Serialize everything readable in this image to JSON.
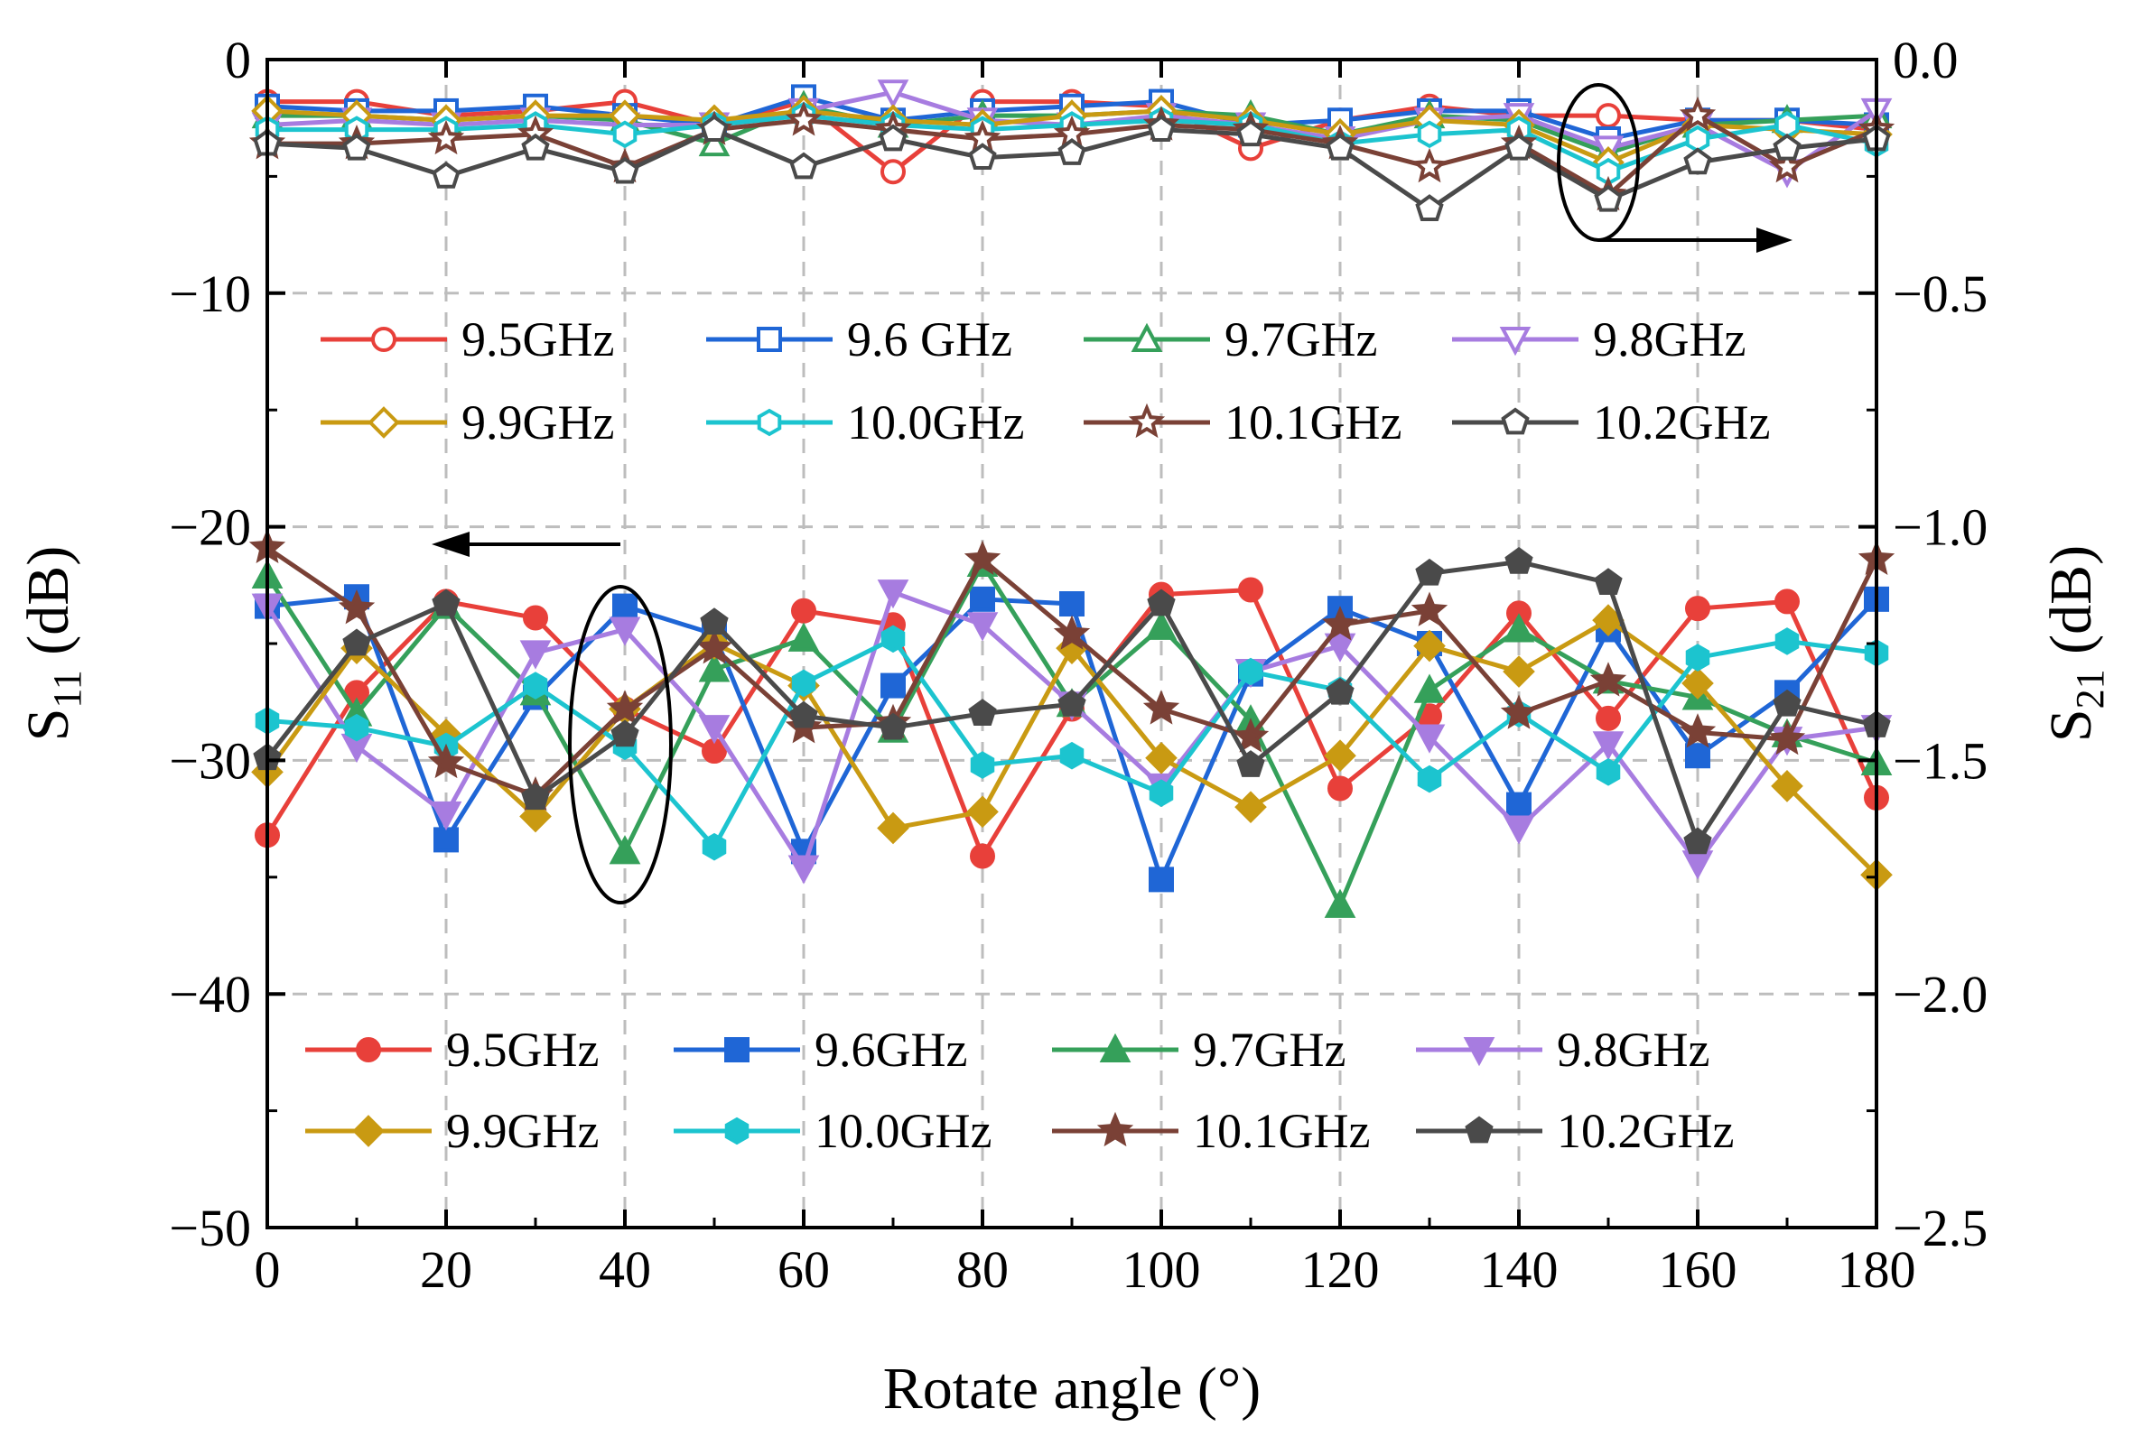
{
  "chart_data": {
    "type": "line",
    "xlabel": "Rotate angle (°)",
    "ylabel_left": {
      "base": "S",
      "sub": "11",
      "unit": " (dB)"
    },
    "ylabel_right": {
      "base": "S",
      "sub": "21",
      "unit": " (dB)"
    },
    "x": [
      0,
      10,
      20,
      30,
      40,
      50,
      60,
      70,
      80,
      90,
      100,
      110,
      120,
      130,
      140,
      150,
      160,
      170,
      180
    ],
    "xlim": [
      0,
      180
    ],
    "ylim_left": [
      -50,
      0
    ],
    "ylim_right": [
      -2.5,
      0.0
    ],
    "x_ticks": [
      "0",
      "20",
      "40",
      "60",
      "80",
      "100",
      "120",
      "140",
      "160",
      "180"
    ],
    "y_ticks_left": [
      "0",
      "−10",
      "−20",
      "−30",
      "−40",
      "−50"
    ],
    "y_ticks_right": [
      "0.0",
      "−0.5",
      "−1.0",
      "−1.5",
      "−2.0",
      "−2.5"
    ],
    "grid": true,
    "colors": {
      "9.5": "#e8403a",
      "9.6": "#1f66d6",
      "9.7": "#35a05a",
      "9.8": "#a77ce0",
      "9.9": "#c99a12",
      "10.0": "#1cc4cf",
      "10.1": "#7a4136",
      "10.2": "#4a4a4a"
    },
    "legend_s21": {
      "placement": "upper-middle",
      "entries": [
        "9.5GHz",
        "9.6 GHz",
        "9.7GHz",
        "9.8GHz",
        "9.9GHz",
        "10.0GHz",
        "10.1GHz",
        "10.2GHz"
      ]
    },
    "legend_s11": {
      "placement": "bottom-middle",
      "entries": [
        "9.5GHz",
        "9.6GHz",
        "9.7GHz",
        "9.8GHz",
        "9.9GHz",
        "10.0GHz",
        "10.1GHz",
        "10.2GHz"
      ]
    },
    "s21_series": [
      {
        "name": "9.5GHz",
        "key": "9.5",
        "marker": "circle",
        "values": [
          -0.09,
          -0.09,
          -0.12,
          -0.11,
          -0.09,
          -0.14,
          -0.09,
          -0.24,
          -0.09,
          -0.09,
          -0.1,
          -0.19,
          -0.13,
          -0.1,
          -0.12,
          -0.12,
          -0.13,
          -0.13,
          -0.15
        ]
      },
      {
        "name": "9.6 GHz",
        "key": "9.6",
        "marker": "square",
        "values": [
          -0.1,
          -0.11,
          -0.11,
          -0.1,
          -0.12,
          -0.14,
          -0.08,
          -0.13,
          -0.11,
          -0.1,
          -0.09,
          -0.14,
          -0.13,
          -0.11,
          -0.11,
          -0.17,
          -0.13,
          -0.13,
          -0.14
        ]
      },
      {
        "name": "9.7GHz",
        "key": "9.7",
        "marker": "triangle",
        "values": [
          -0.12,
          -0.12,
          -0.13,
          -0.12,
          -0.13,
          -0.18,
          -0.1,
          -0.14,
          -0.12,
          -0.12,
          -0.11,
          -0.12,
          -0.16,
          -0.12,
          -0.13,
          -0.2,
          -0.14,
          -0.13,
          -0.12
        ]
      },
      {
        "name": "9.8GHz",
        "key": "9.8",
        "marker": "tri-down",
        "values": [
          -0.14,
          -0.13,
          -0.14,
          -0.13,
          -0.14,
          -0.14,
          -0.11,
          -0.07,
          -0.13,
          -0.14,
          -0.12,
          -0.14,
          -0.17,
          -0.13,
          -0.12,
          -0.19,
          -0.14,
          -0.24,
          -0.11
        ]
      },
      {
        "name": "9.9GHz",
        "key": "9.9",
        "marker": "diamond",
        "values": [
          -0.11,
          -0.12,
          -0.13,
          -0.12,
          -0.12,
          -0.13,
          -0.11,
          -0.13,
          -0.14,
          -0.12,
          -0.11,
          -0.13,
          -0.16,
          -0.13,
          -0.14,
          -0.22,
          -0.14,
          -0.15,
          -0.16
        ]
      },
      {
        "name": "10.0GHz",
        "key": "10.0",
        "marker": "hexagon",
        "values": [
          -0.15,
          -0.15,
          -0.15,
          -0.14,
          -0.16,
          -0.14,
          -0.12,
          -0.14,
          -0.15,
          -0.14,
          -0.13,
          -0.14,
          -0.18,
          -0.16,
          -0.15,
          -0.24,
          -0.17,
          -0.14,
          -0.18
        ]
      },
      {
        "name": "10.1GHz",
        "key": "10.1",
        "marker": "star",
        "values": [
          -0.18,
          -0.18,
          -0.17,
          -0.16,
          -0.23,
          -0.15,
          -0.13,
          -0.15,
          -0.17,
          -0.16,
          -0.14,
          -0.15,
          -0.18,
          -0.23,
          -0.18,
          -0.29,
          -0.12,
          -0.23,
          -0.15
        ]
      },
      {
        "name": "10.2GHz",
        "key": "10.2",
        "marker": "pentagon",
        "values": [
          -0.18,
          -0.19,
          -0.25,
          -0.19,
          -0.24,
          -0.15,
          -0.23,
          -0.17,
          -0.21,
          -0.2,
          -0.15,
          -0.16,
          -0.19,
          -0.32,
          -0.19,
          -0.3,
          -0.22,
          -0.19,
          -0.17
        ]
      }
    ],
    "s11_series": [
      {
        "name": "9.5GHz",
        "key": "9.5",
        "marker": "circle",
        "values": [
          -33.2,
          -27.1,
          -23.2,
          -23.9,
          -27.8,
          -29.6,
          -23.6,
          -24.2,
          -34.1,
          -27.8,
          -22.9,
          -22.7,
          -31.2,
          -28.1,
          -23.7,
          -28.2,
          -23.5,
          -23.2,
          -31.6
        ]
      },
      {
        "name": "9.6GHz",
        "key": "9.6",
        "marker": "square",
        "values": [
          -23.4,
          -23.0,
          -33.4,
          -27.3,
          -23.4,
          -24.6,
          -33.9,
          -26.8,
          -23.1,
          -23.3,
          -35.1,
          -26.3,
          -23.5,
          -25.0,
          -31.9,
          -24.4,
          -29.8,
          -27.1,
          -23.1
        ]
      },
      {
        "name": "9.7GHz",
        "key": "9.7",
        "marker": "triangle",
        "values": [
          -22.1,
          -28.0,
          -23.4,
          -27.1,
          -33.9,
          -26.1,
          -24.8,
          -28.7,
          -21.6,
          -27.6,
          -24.3,
          -28.3,
          -36.2,
          -27.0,
          -24.4,
          -26.6,
          -27.3,
          -28.9,
          -30.1
        ]
      },
      {
        "name": "9.8GHz",
        "key": "9.8",
        "marker": "tri-down",
        "values": [
          -23.4,
          -29.4,
          -32.3,
          -25.4,
          -24.4,
          -28.6,
          -34.6,
          -22.8,
          -24.2,
          -27.6,
          -31.1,
          -26.2,
          -25.1,
          -29.0,
          -32.9,
          -29.3,
          -34.4,
          -29.1,
          -28.6
        ]
      },
      {
        "name": "9.9GHz",
        "key": "9.9",
        "marker": "diamond",
        "values": [
          -30.5,
          -25.2,
          -28.9,
          -32.4,
          -27.8,
          -25.0,
          -26.8,
          -32.9,
          -32.2,
          -25.2,
          -29.9,
          -32.0,
          -29.8,
          -25.1,
          -26.2,
          -24.0,
          -26.7,
          -31.1,
          -34.9
        ]
      },
      {
        "name": "10.0GHz",
        "key": "10.0",
        "marker": "hexagon",
        "values": [
          -28.3,
          -28.6,
          -29.4,
          -26.8,
          -29.4,
          -33.7,
          -26.7,
          -24.8,
          -30.2,
          -29.8,
          -31.4,
          -26.2,
          -27.0,
          -30.8,
          -28.0,
          -30.5,
          -25.6,
          -24.9,
          -25.4
        ]
      },
      {
        "name": "10.1GHz",
        "key": "10.1",
        "marker": "star",
        "values": [
          -20.9,
          -23.5,
          -30.1,
          -31.5,
          -27.8,
          -25.2,
          -28.6,
          -28.4,
          -21.4,
          -24.6,
          -27.8,
          -29.0,
          -24.2,
          -23.6,
          -28.0,
          -26.6,
          -28.8,
          -29.1,
          -21.4
        ]
      },
      {
        "name": "10.2GHz",
        "key": "10.2",
        "marker": "pentagon",
        "values": [
          -29.9,
          -25.0,
          -23.3,
          -31.6,
          -28.9,
          -24.1,
          -28.1,
          -28.6,
          -28.0,
          -27.6,
          -23.3,
          -30.2,
          -27.1,
          -22.0,
          -21.5,
          -22.4,
          -33.5,
          -27.6,
          -28.5
        ]
      }
    ]
  }
}
